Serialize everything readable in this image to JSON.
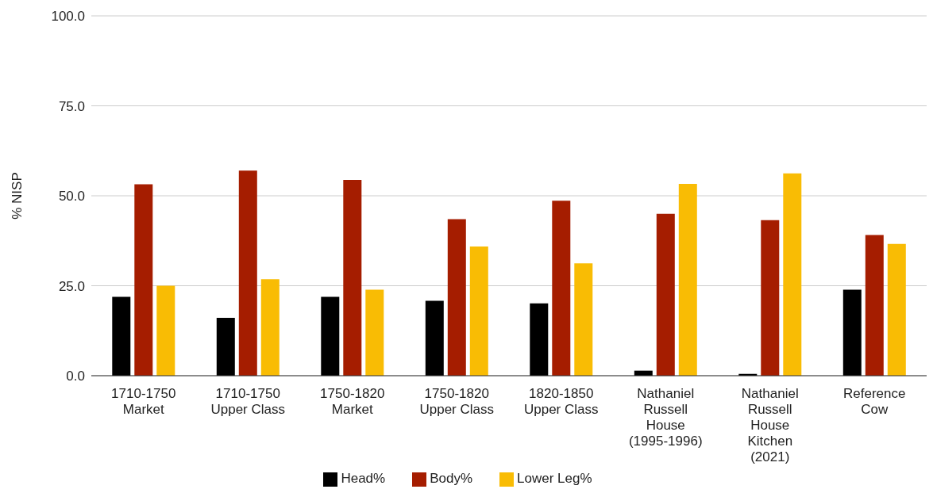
{
  "chart_data": {
    "type": "bar",
    "ylabel": "% NISP",
    "categories": [
      "1710-1750\nMarket",
      "1710-1750\nUpper Class",
      "1750-1820\nMarket",
      "1750-1820\nUpper Class",
      "1820-1850\nUpper Class",
      "Nathaniel\nRussell\nHouse\n(1995-1996)",
      "Nathaniel\nRussell\nHouse\nKitchen\n(2021)",
      "Reference\nCow"
    ],
    "series": [
      {
        "name": "Head%",
        "color": "#000000",
        "values": [
          21.9,
          16.1,
          21.9,
          20.8,
          20.1,
          1.4,
          0.5,
          23.9
        ]
      },
      {
        "name": "Body%",
        "color": "#a51d00",
        "values": [
          53.2,
          57.0,
          54.4,
          43.5,
          48.6,
          45.0,
          43.2,
          39.1
        ]
      },
      {
        "name": "Lower Leg%",
        "color": "#f9bc04",
        "values": [
          25.0,
          26.8,
          23.9,
          35.9,
          31.2,
          53.3,
          56.2,
          36.6
        ]
      }
    ],
    "ylim": [
      0,
      100
    ],
    "yticks": [
      {
        "value": 0,
        "label": "0.0"
      },
      {
        "value": 25,
        "label": "25.0"
      },
      {
        "value": 50,
        "label": "50.0"
      },
      {
        "value": 75,
        "label": "75.0"
      },
      {
        "value": 100,
        "label": "100.0"
      }
    ],
    "grid": "y",
    "legend": "bottom"
  }
}
